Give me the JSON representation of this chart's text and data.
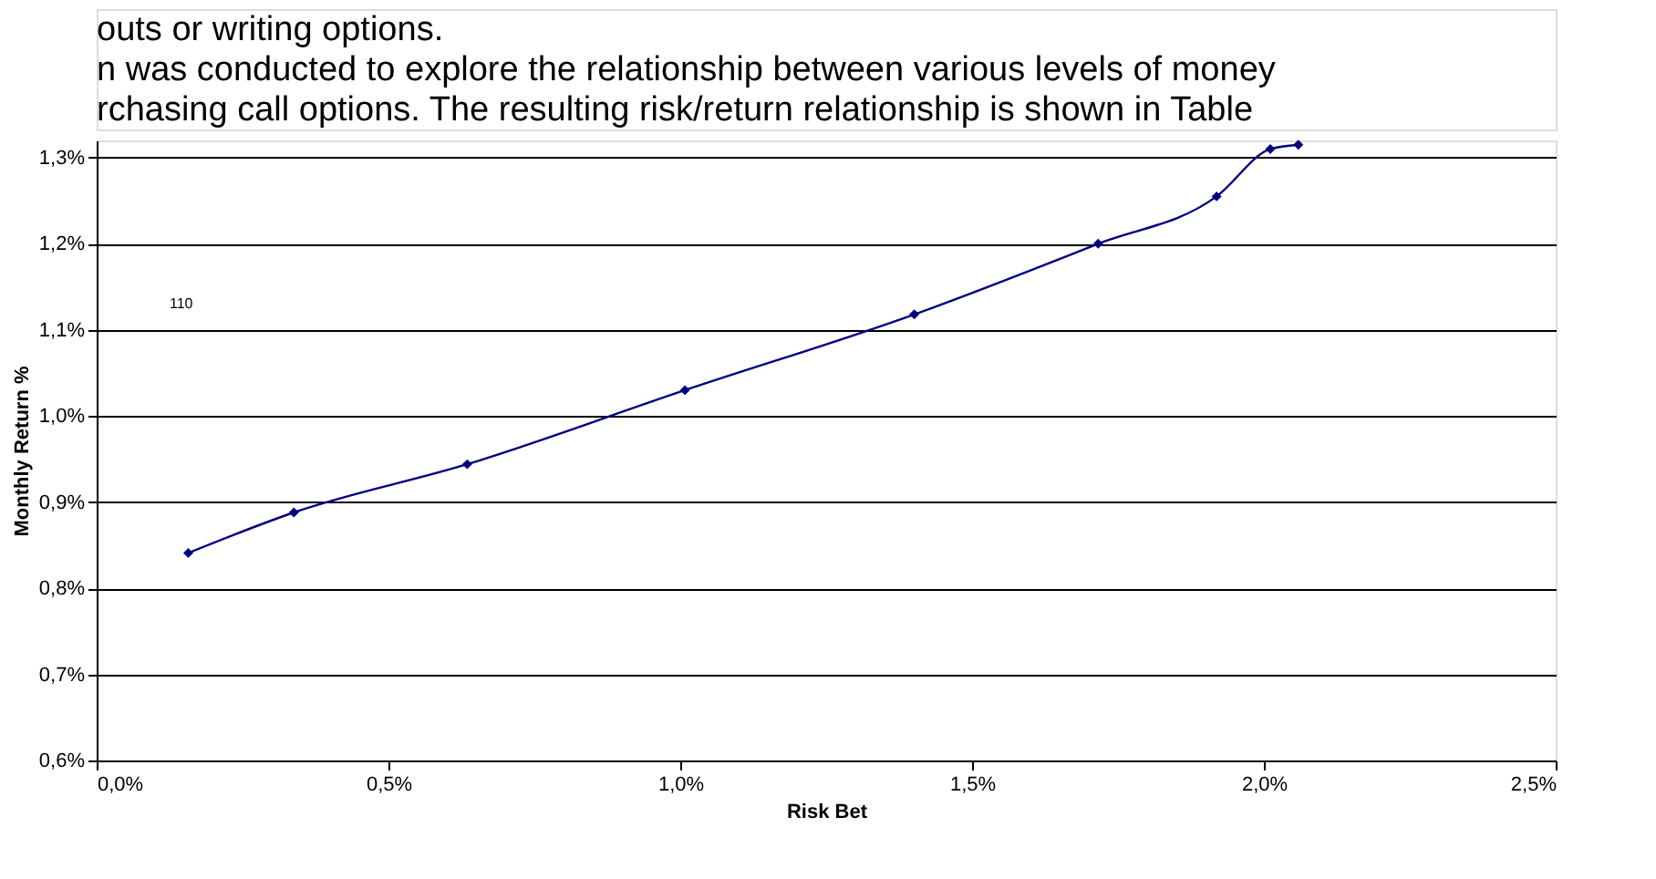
{
  "chart_data": {
    "type": "line",
    "xlabel": "Risk Bet",
    "ylabel": "Monthly Return %",
    "x": [
      0.157,
      0.338,
      0.635,
      1.008,
      1.401,
      1.716,
      1.919,
      2.011,
      2.059
    ],
    "series": [
      {
        "color": "#000080",
        "values": [
          0.841,
          0.888,
          0.944,
          1.03,
          1.118,
          1.2,
          1.255,
          1.31,
          1.315
        ]
      }
    ],
    "xlim": [
      0,
      2.5
    ],
    "ylim": [
      0.6,
      1.32
    ],
    "xticks": [
      {
        "value": 0,
        "label": "0,0%"
      },
      {
        "value": 0.5,
        "label": "0,5%"
      },
      {
        "value": 1,
        "label": "1,0%"
      },
      {
        "value": 1.5,
        "label": "1,5%"
      },
      {
        "value": 2,
        "label": "2,0%"
      },
      {
        "value": 2.5,
        "label": "2,5%"
      }
    ],
    "yticks": [
      {
        "value": 0.6,
        "label": "0,6%"
      },
      {
        "value": 0.7,
        "label": "0,7%"
      },
      {
        "value": 0.8,
        "label": "0,8%"
      },
      {
        "value": 0.9,
        "label": "0,9%"
      },
      {
        "value": 1.0,
        "label": "1,0%"
      },
      {
        "value": 1.1,
        "label": "1,1%"
      },
      {
        "value": 1.2,
        "label": "1,2%"
      },
      {
        "value": 1.3,
        "label": "1,3%"
      }
    ],
    "grid": "y",
    "marker": "diamond",
    "line_style": "solid",
    "annotations": [
      "outs or writing options.",
      "n was conducted to explore the relationship between various levels of money",
      "rchasing call options.   The resulting risk/return relationship is shown in Table",
      "110"
    ]
  }
}
